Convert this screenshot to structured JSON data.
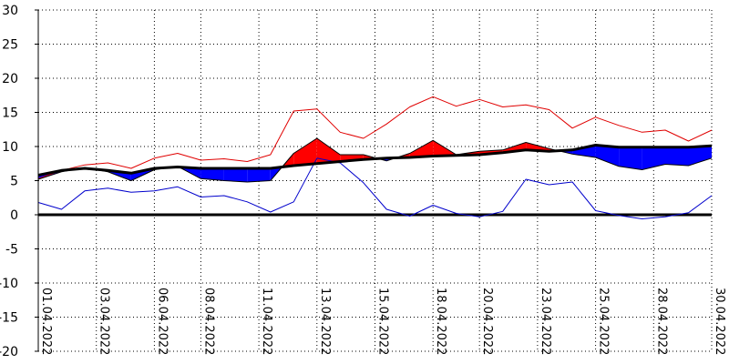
{
  "chart_data": {
    "type": "line",
    "x_labels": [
      "01.04.2022",
      "03.04.2022",
      "06.04.2022",
      "08.04.2022",
      "11.04.2022",
      "13.04.2022",
      "15.04.2022",
      "18.04.2022",
      "20.04.2022",
      "23.04.2022",
      "25.04.2022",
      "28.04.2022",
      "30.04.2022"
    ],
    "x_label_days": [
      1,
      3.5,
      6,
      8,
      10.5,
      13,
      15.5,
      18,
      20,
      22.5,
      25,
      27.5,
      30
    ],
    "ylim": [
      -20,
      30
    ],
    "y_ticks": [
      30,
      25,
      20,
      15,
      10,
      5,
      0,
      -5,
      -10,
      -15,
      -20
    ],
    "x_days": [
      1,
      2,
      3,
      4,
      5,
      6,
      7,
      8,
      9,
      10,
      11,
      12,
      13,
      14,
      15,
      16,
      17,
      18,
      19,
      20,
      21,
      22,
      23,
      24,
      25,
      26,
      27,
      28,
      29,
      30
    ],
    "series": [
      {
        "values": [
          5.3,
          6.5,
          7.3,
          7.6,
          6.8,
          8.3,
          9.0,
          8.0,
          8.2,
          7.8,
          8.8,
          15.2,
          15.5,
          12.1,
          11.2,
          13.3,
          15.8,
          17.3,
          15.9,
          16.9,
          15.8,
          16.1,
          15.4,
          12.7,
          14.3,
          13.1,
          12.1,
          12.4,
          10.8,
          12.4
        ],
        "color": "#e00000"
      },
      {
        "values": [
          1.8,
          0.8,
          3.5,
          3.9,
          3.3,
          3.5,
          4.1,
          2.6,
          2.8,
          1.9,
          0.4,
          1.9,
          8.3,
          7.6,
          4.7,
          0.8,
          -0.2,
          1.4,
          0.2,
          -0.3,
          0.5,
          5.2,
          4.4,
          4.8,
          0.6,
          -0.1,
          -0.6,
          -0.3,
          0.3,
          2.8
        ],
        "color": "#0000cc"
      },
      {
        "values": [
          5.8,
          6.5,
          6.8,
          6.5,
          6.1,
          6.8,
          7.0,
          6.8,
          6.8,
          6.8,
          6.8,
          7.2,
          7.5,
          7.8,
          8.1,
          8.3,
          8.4,
          8.6,
          8.7,
          8.8,
          9.1,
          9.5,
          9.3,
          9.5,
          10.2,
          9.9,
          9.9,
          9.9,
          9.9,
          10.1
        ],
        "color": "#000000"
      },
      {
        "values": [
          5.2,
          6.3,
          6.9,
          6.3,
          5.0,
          6.6,
          7.1,
          5.3,
          5.0,
          4.8,
          5.0,
          9.0,
          11.2,
          8.8,
          8.8,
          7.9,
          9.0,
          10.9,
          8.8,
          9.3,
          9.5,
          10.6,
          9.7,
          8.9,
          8.4,
          7.1,
          6.6,
          7.4,
          7.2,
          8.3
        ],
        "color": "#000000"
      }
    ],
    "fill_above_color": "#ff0000",
    "fill_below_color": "#0000ff",
    "grid": true,
    "zero_line": true
  }
}
